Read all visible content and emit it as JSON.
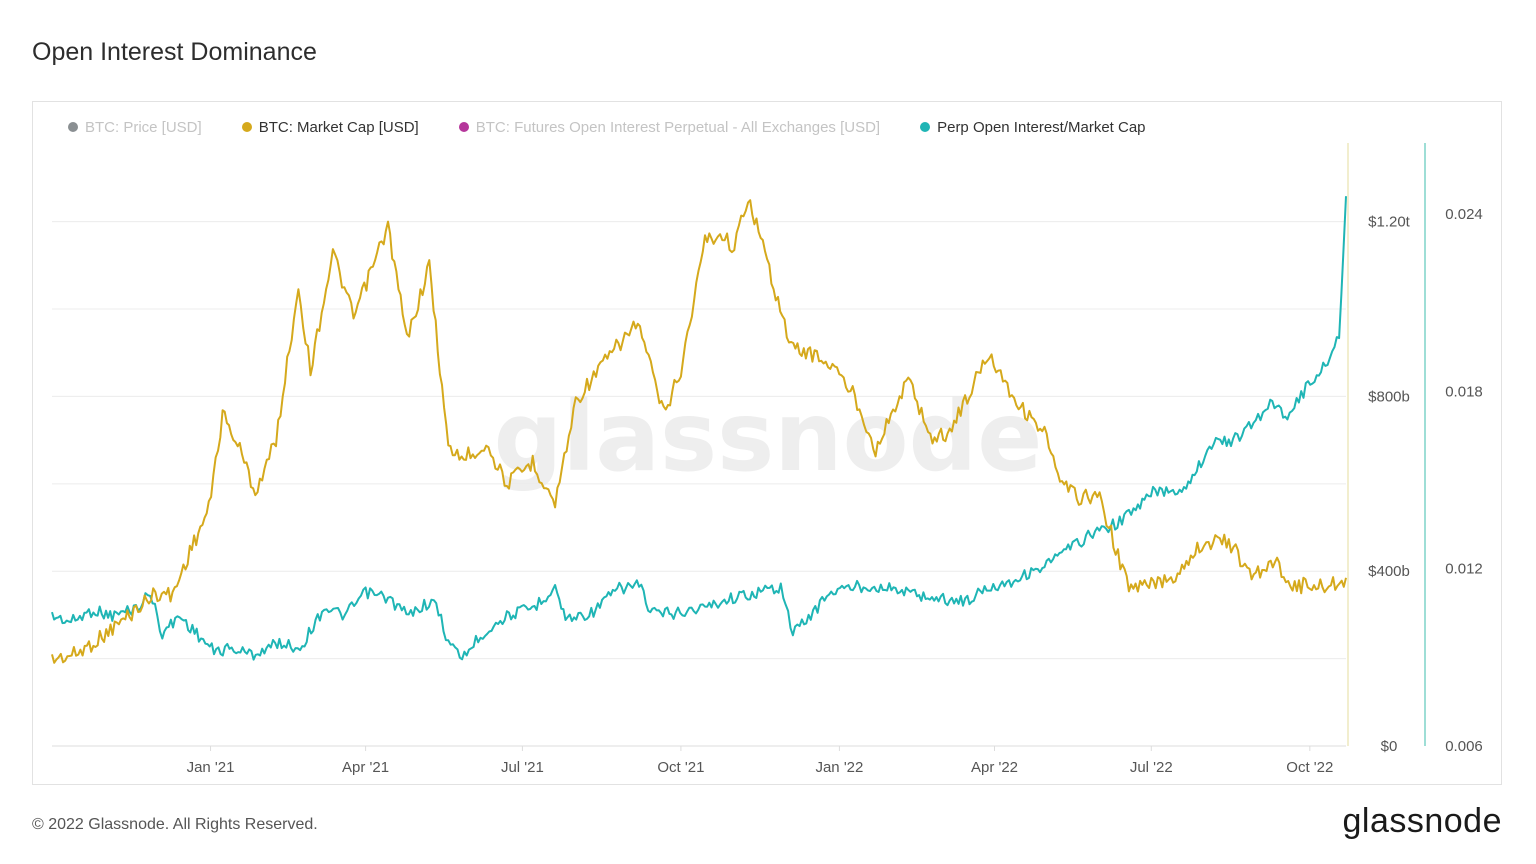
{
  "title": "Open Interest Dominance",
  "footer": "© 2022 Glassnode. All Rights Reserved.",
  "brand": "glassnode",
  "watermark": "glassnode",
  "legend": [
    {
      "label": "BTC: Price [USD]",
      "color": "#8a8f92",
      "active": false
    },
    {
      "label": "BTC: Market Cap [USD]",
      "color": "#d5a91c",
      "active": true
    },
    {
      "label": "BTC: Futures Open Interest Perpetual - All Exchanges [USD]",
      "color": "#b5369b",
      "active": false
    },
    {
      "label": "Perp Open Interest/Market Cap",
      "color": "#1fb5b5",
      "active": true
    }
  ],
  "colors": {
    "marketcap": "#d5a91c",
    "ratio": "#1fb5b5",
    "grid": "#ececec",
    "axis": "#dddddd"
  },
  "chart_data": {
    "type": "line",
    "x_ticks": [
      "Jan '21",
      "Apr '21",
      "Jul '21",
      "Oct '21",
      "Jan '22",
      "Apr '22",
      "Jul '22",
      "Oct '22"
    ],
    "x_range": [
      "2020-10-01",
      "2022-10-22"
    ],
    "y_left": {
      "ticks": [
        "$0",
        "$400b",
        "$800b",
        "$1.20t"
      ],
      "values": [
        0,
        400,
        800,
        1200
      ],
      "unit": "billion USD",
      "range": [
        0,
        1380
      ]
    },
    "y_right": {
      "ticks": [
        "0.006",
        "0.012",
        "0.018",
        "0.024"
      ],
      "values": [
        0.006,
        0.012,
        0.018,
        0.024
      ],
      "range": [
        0.006,
        0.0264
      ]
    },
    "series": [
      {
        "name": "BTC: Market Cap [USD]",
        "axis": "left",
        "points": [
          [
            "2020-10-01",
            198
          ],
          [
            "2020-10-15",
            210
          ],
          [
            "2020-10-30",
            250
          ],
          [
            "2020-11-15",
            300
          ],
          [
            "2020-11-30",
            350
          ],
          [
            "2020-12-10",
            345
          ],
          [
            "2020-12-20",
            445
          ],
          [
            "2020-12-31",
            542
          ],
          [
            "2021-01-08",
            760
          ],
          [
            "2021-01-18",
            680
          ],
          [
            "2021-01-27",
            580
          ],
          [
            "2021-02-08",
            700
          ],
          [
            "2021-02-21",
            1050
          ],
          [
            "2021-02-28",
            860
          ],
          [
            "2021-03-13",
            1130
          ],
          [
            "2021-03-25",
            980
          ],
          [
            "2021-04-14",
            1190
          ],
          [
            "2021-04-25",
            930
          ],
          [
            "2021-05-08",
            1100
          ],
          [
            "2021-05-19",
            680
          ],
          [
            "2021-05-28",
            660
          ],
          [
            "2021-06-10",
            690
          ],
          [
            "2021-06-22",
            600
          ],
          [
            "2021-07-07",
            650
          ],
          [
            "2021-07-20",
            555
          ],
          [
            "2021-08-01",
            790
          ],
          [
            "2021-08-14",
            860
          ],
          [
            "2021-08-22",
            900
          ],
          [
            "2021-09-06",
            970
          ],
          [
            "2021-09-21",
            760
          ],
          [
            "2021-10-01",
            860
          ],
          [
            "2021-10-15",
            1160
          ],
          [
            "2021-10-25",
            1170
          ],
          [
            "2021-11-01",
            1140
          ],
          [
            "2021-11-09",
            1260
          ],
          [
            "2021-11-20",
            1110
          ],
          [
            "2021-12-04",
            910
          ],
          [
            "2021-12-15",
            900
          ],
          [
            "2021-12-28",
            870
          ],
          [
            "2022-01-10",
            800
          ],
          [
            "2022-01-22",
            680
          ],
          [
            "2022-02-10",
            840
          ],
          [
            "2022-02-24",
            700
          ],
          [
            "2022-03-06",
            720
          ],
          [
            "2022-03-29",
            900
          ],
          [
            "2022-04-15",
            780
          ],
          [
            "2022-04-30",
            720
          ],
          [
            "2022-05-09",
            600
          ],
          [
            "2022-05-20",
            570
          ],
          [
            "2022-06-01",
            570
          ],
          [
            "2022-06-13",
            420
          ],
          [
            "2022-06-18",
            360
          ],
          [
            "2022-07-01",
            370
          ],
          [
            "2022-07-15",
            390
          ],
          [
            "2022-07-29",
            460
          ],
          [
            "2022-08-15",
            470
          ],
          [
            "2022-08-27",
            390
          ],
          [
            "2022-09-12",
            420
          ],
          [
            "2022-09-21",
            365
          ],
          [
            "2022-10-01",
            370
          ],
          [
            "2022-10-12",
            365
          ],
          [
            "2022-10-22",
            385
          ]
        ]
      },
      {
        "name": "Perp Open Interest/Market Cap",
        "axis": "right",
        "points": [
          [
            "2020-10-01",
            0.0104
          ],
          [
            "2020-10-12",
            0.0102
          ],
          [
            "2020-10-25",
            0.0106
          ],
          [
            "2020-11-05",
            0.0104
          ],
          [
            "2020-11-20",
            0.0107
          ],
          [
            "2020-11-27",
            0.0112
          ],
          [
            "2020-12-04",
            0.0098
          ],
          [
            "2020-12-14",
            0.0104
          ],
          [
            "2020-12-24",
            0.0098
          ],
          [
            "2021-01-03",
            0.0092
          ],
          [
            "2021-01-12",
            0.0093
          ],
          [
            "2021-01-26",
            0.0091
          ],
          [
            "2021-02-10",
            0.0095
          ],
          [
            "2021-02-22",
            0.0093
          ],
          [
            "2021-03-08",
            0.0107
          ],
          [
            "2021-03-20",
            0.0104
          ],
          [
            "2021-04-01",
            0.0112
          ],
          [
            "2021-04-14",
            0.011
          ],
          [
            "2021-04-26",
            0.0104
          ],
          [
            "2021-05-05",
            0.0108
          ],
          [
            "2021-05-12",
            0.0108
          ],
          [
            "2021-05-19",
            0.0095
          ],
          [
            "2021-05-27",
            0.009
          ],
          [
            "2021-06-08",
            0.0098
          ],
          [
            "2021-06-22",
            0.0104
          ],
          [
            "2021-07-08",
            0.0107
          ],
          [
            "2021-07-20",
            0.0114
          ],
          [
            "2021-07-26",
            0.0103
          ],
          [
            "2021-08-10",
            0.0105
          ],
          [
            "2021-08-25",
            0.0113
          ],
          [
            "2021-09-08",
            0.0115
          ],
          [
            "2021-09-12",
            0.0105
          ],
          [
            "2021-09-28",
            0.0105
          ],
          [
            "2021-10-15",
            0.0107
          ],
          [
            "2021-10-30",
            0.011
          ],
          [
            "2021-11-15",
            0.0112
          ],
          [
            "2021-11-28",
            0.0114
          ],
          [
            "2021-12-05",
            0.0098
          ],
          [
            "2021-12-18",
            0.0106
          ],
          [
            "2021-12-26",
            0.0112
          ],
          [
            "2022-01-10",
            0.0114
          ],
          [
            "2022-01-25",
            0.0114
          ],
          [
            "2022-02-10",
            0.0112
          ],
          [
            "2022-02-25",
            0.011
          ],
          [
            "2022-03-15",
            0.0109
          ],
          [
            "2022-03-30",
            0.0114
          ],
          [
            "2022-04-12",
            0.0116
          ],
          [
            "2022-04-30",
            0.0121
          ],
          [
            "2022-05-15",
            0.0127
          ],
          [
            "2022-05-28",
            0.0132
          ],
          [
            "2022-06-10",
            0.0135
          ],
          [
            "2022-06-22",
            0.014
          ],
          [
            "2022-07-02",
            0.0146
          ],
          [
            "2022-07-20",
            0.0147
          ],
          [
            "2022-08-05",
            0.0162
          ],
          [
            "2022-08-20",
            0.0164
          ],
          [
            "2022-09-01",
            0.0171
          ],
          [
            "2022-09-08",
            0.0176
          ],
          [
            "2022-09-18",
            0.0172
          ],
          [
            "2022-09-30",
            0.0182
          ],
          [
            "2022-10-10",
            0.0189
          ],
          [
            "2022-10-18",
            0.0198
          ],
          [
            "2022-10-22",
            0.0246
          ]
        ]
      }
    ]
  }
}
